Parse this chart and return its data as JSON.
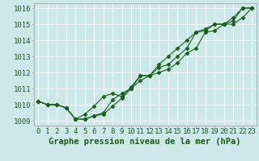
{
  "title": "Graphe pression niveau de la mer (hPa)",
  "background_color": "#cce8e8",
  "grid_color": "#ffffff",
  "line_color": "#1a5c1a",
  "marker_color": "#1a5c1a",
  "tick_color": "#1a5c1a",
  "hours": [
    0,
    1,
    2,
    3,
    4,
    5,
    6,
    7,
    8,
    9,
    10,
    11,
    12,
    13,
    14,
    15,
    16,
    17,
    18,
    19,
    20,
    21,
    22,
    23
  ],
  "series1": [
    1010.2,
    1010.0,
    1010.0,
    1009.8,
    1009.1,
    1009.1,
    1009.3,
    1009.4,
    1009.9,
    1010.4,
    1011.0,
    1011.5,
    1011.8,
    1012.0,
    1012.2,
    1012.6,
    1013.2,
    1013.5,
    1014.5,
    1014.6,
    1015.0,
    1015.0,
    1015.4,
    1016.0
  ],
  "series2": [
    1010.2,
    1010.0,
    1010.0,
    1009.8,
    1009.1,
    1009.1,
    1009.3,
    1009.5,
    1010.3,
    1010.7,
    1011.0,
    1011.8,
    1011.8,
    1012.3,
    1012.5,
    1013.0,
    1013.5,
    1014.5,
    1014.6,
    1015.0,
    1015.0,
    1015.4,
    1016.0,
    1016.0
  ],
  "series3": [
    1010.2,
    1010.0,
    1010.0,
    1009.8,
    1009.1,
    1009.4,
    1009.9,
    1010.5,
    1010.7,
    1010.5,
    1011.1,
    1011.8,
    1011.8,
    1012.5,
    1013.0,
    1013.5,
    1014.0,
    1014.5,
    1014.7,
    1015.0,
    1015.0,
    1015.2,
    1016.0,
    1016.0
  ],
  "ylim_min": 1008.7,
  "ylim_max": 1016.3,
  "yticks": [
    1009,
    1010,
    1011,
    1012,
    1013,
    1014,
    1015,
    1016
  ],
  "title_fontsize": 7.5,
  "tick_fontsize": 6.5
}
